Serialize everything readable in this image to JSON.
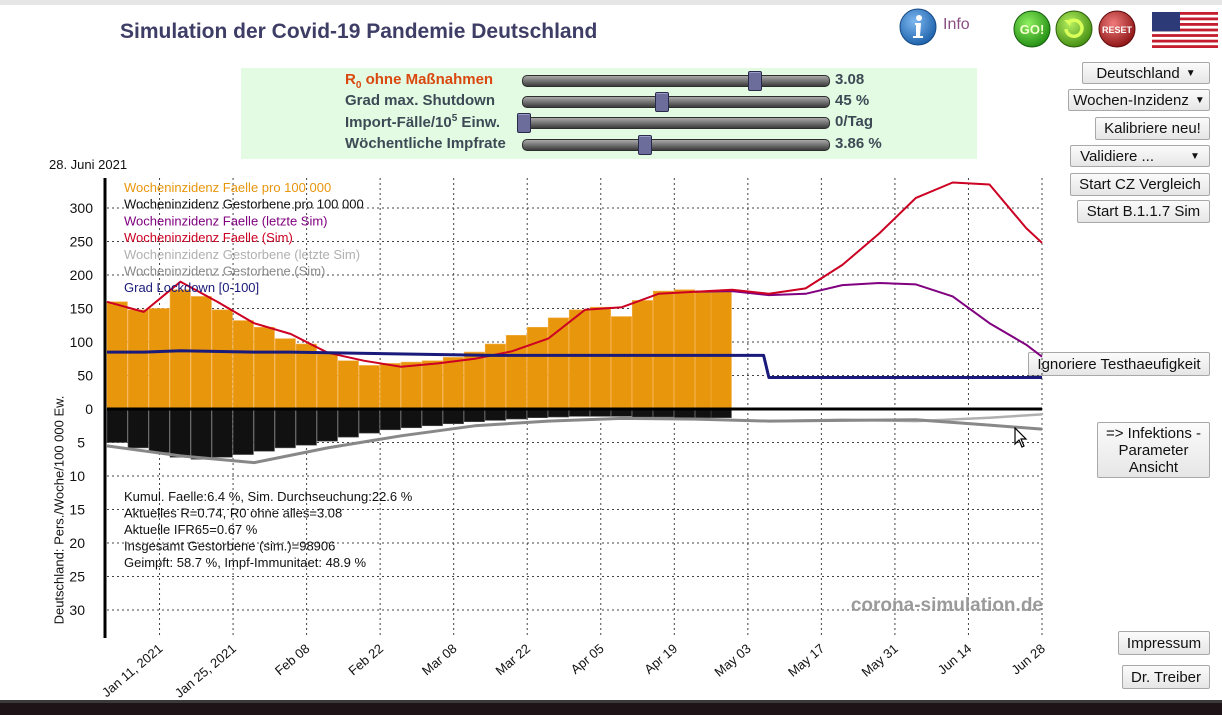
{
  "app": {
    "title": "Simulation der Covid-19 Pandemie Deutschland",
    "info_label": "Info",
    "go_label": "GO!",
    "reset_label": "RESET",
    "date": "28. Juni 2021"
  },
  "params": [
    {
      "label": "ohne Maßnahmen",
      "prefix": "R",
      "sub": "0",
      "value": "3.08",
      "level": 0.755,
      "color": "#d9480f"
    },
    {
      "label": "Grad max. Shutdown",
      "value": "45 %",
      "level": 0.45
    },
    {
      "label": "Import-Fälle/10",
      "sup": "5",
      "suffix": " Einw.",
      "value": "0/Tag",
      "level": 0.0
    },
    {
      "label": "Wöchentliche Impfrate",
      "value": "3.86 %",
      "level": 0.395
    }
  ],
  "controls": {
    "region_select": "Deutschland",
    "metric_select": "Wochen-Inzidenz",
    "calibrate": "Kalibriere neu!",
    "validate_select": "Validiere ...",
    "cz_compare": "Start CZ Vergleich",
    "b117": "Start B.1.1.7 Sim",
    "ignore_test": "Ignoriere Testhaeufigkeit",
    "params_view_1": "=> Infektions -",
    "params_view_2": "Parameter",
    "params_view_3": "Ansicht",
    "impressum": "Impressum",
    "author": "Dr. Treiber"
  },
  "chart_data": {
    "type": "line",
    "ylabel": "Deutschland: Pers./Woche/100 000 Ew.",
    "x_ticks": [
      "Jan 11, 2021",
      "Jan 25, 2021",
      "Feb 08",
      "Feb 22",
      "Mar 08",
      "Mar 22",
      "Apr 05",
      "Apr 19",
      "May 03",
      "May 17",
      "May 31",
      "Jun 14",
      "Jun 28"
    ],
    "x_range": [
      "2021-01-01",
      "2021-06-28"
    ],
    "y_ticks_upper": [
      0,
      50,
      100,
      150,
      200,
      250,
      300
    ],
    "y_ticks_lower": [
      5,
      10,
      15,
      20,
      25,
      30
    ],
    "upper_range": [
      0,
      300
    ],
    "lower_range": [
      0,
      30
    ],
    "grid": true,
    "legend_position": "top-left",
    "legend": [
      {
        "name": "Wocheninzidenz Faelle pro 100 000",
        "color": "#e8960c"
      },
      {
        "name": "Wocheninzidenz Gestorbene pro 100 000",
        "color": "#111111"
      },
      {
        "name": "Wocheninzidenz Faelle (letzte Sim)",
        "color": "#800080"
      },
      {
        "name": "Wocheninzidenz Faelle (Sim)",
        "color": "#cc0022"
      },
      {
        "name": "Wocheninzidenz Gestorbene (letzte Sim)",
        "color": "#b0b0b0"
      },
      {
        "name": "Wocheninzidenz Gestorbene (Sim)",
        "color": "#888888"
      },
      {
        "name": "Grad Lockdown [0-100]",
        "color": "#1a1a7a"
      }
    ],
    "series": [
      {
        "name": "Wocheninzidenz Faelle pro 100 000",
        "kind": "bars",
        "x": [
          "2021-01-01",
          "2021-01-05",
          "2021-01-09",
          "2021-01-13",
          "2021-01-17",
          "2021-01-21",
          "2021-01-25",
          "2021-01-29",
          "2021-02-02",
          "2021-02-06",
          "2021-02-10",
          "2021-02-14",
          "2021-02-18",
          "2021-02-22",
          "2021-02-26",
          "2021-03-02",
          "2021-03-06",
          "2021-03-10",
          "2021-03-14",
          "2021-03-18",
          "2021-03-22",
          "2021-03-26",
          "2021-03-30",
          "2021-04-03",
          "2021-04-07",
          "2021-04-11",
          "2021-04-15",
          "2021-04-19",
          "2021-04-23",
          "2021-04-26"
        ],
        "y": [
          160,
          148,
          150,
          178,
          168,
          148,
          132,
          122,
          105,
          97,
          82,
          72,
          65,
          68,
          70,
          72,
          77,
          85,
          97,
          110,
          122,
          136,
          148,
          152,
          138,
          162,
          176,
          178,
          176,
          175
        ]
      },
      {
        "name": "Wocheninzidenz Gestorbene pro 100 000",
        "kind": "bars_down",
        "x": [
          "2021-01-01",
          "2021-01-05",
          "2021-01-09",
          "2021-01-13",
          "2021-01-17",
          "2021-01-21",
          "2021-01-25",
          "2021-01-29",
          "2021-02-02",
          "2021-02-06",
          "2021-02-10",
          "2021-02-14",
          "2021-02-18",
          "2021-02-22",
          "2021-02-26",
          "2021-03-02",
          "2021-03-06",
          "2021-03-10",
          "2021-03-14",
          "2021-03-18",
          "2021-03-22",
          "2021-03-26",
          "2021-03-30",
          "2021-04-03",
          "2021-04-07",
          "2021-04-11",
          "2021-04-15",
          "2021-04-19",
          "2021-04-23",
          "2021-04-26"
        ],
        "y": [
          5.0,
          5.8,
          6.5,
          7.2,
          7.5,
          7.2,
          6.8,
          6.3,
          5.8,
          5.4,
          4.8,
          4.2,
          3.6,
          3.1,
          2.8,
          2.5,
          2.2,
          1.9,
          1.7,
          1.5,
          1.3,
          1.2,
          1.1,
          1.1,
          1.1,
          1.2,
          1.2,
          1.3,
          1.3,
          1.3
        ]
      },
      {
        "name": "Wocheninzidenz Faelle (Sim)",
        "x": [
          "2021-01-01",
          "2021-01-08",
          "2021-01-15",
          "2021-01-22",
          "2021-01-29",
          "2021-02-05",
          "2021-02-12",
          "2021-02-19",
          "2021-02-26",
          "2021-03-05",
          "2021-03-12",
          "2021-03-19",
          "2021-03-26",
          "2021-04-02",
          "2021-04-09",
          "2021-04-16",
          "2021-04-23",
          "2021-04-30",
          "2021-05-07",
          "2021-05-14",
          "2021-05-21",
          "2021-05-28",
          "2021-06-04",
          "2021-06-11",
          "2021-06-18",
          "2021-06-25",
          "2021-06-28"
        ],
        "y": [
          160,
          145,
          190,
          160,
          128,
          112,
          84,
          72,
          63,
          68,
          75,
          86,
          105,
          148,
          152,
          172,
          175,
          178,
          172,
          180,
          215,
          262,
          315,
          338,
          335,
          270,
          248
        ]
      },
      {
        "name": "Wocheninzidenz Faelle (letzte Sim)",
        "x": [
          "2021-04-23",
          "2021-04-30",
          "2021-05-07",
          "2021-05-14",
          "2021-05-21",
          "2021-05-28",
          "2021-06-04",
          "2021-06-11",
          "2021-06-18",
          "2021-06-25",
          "2021-06-28"
        ],
        "y": [
          175,
          176,
          170,
          172,
          185,
          188,
          186,
          168,
          128,
          96,
          78
        ]
      },
      {
        "name": "Grad Lockdown [0-100]",
        "x": [
          "2021-01-01",
          "2021-01-08",
          "2021-01-15",
          "2021-01-29",
          "2021-02-05",
          "2021-03-15",
          "2021-05-06",
          "2021-05-07",
          "2021-06-28"
        ],
        "y": [
          85,
          85,
          87,
          85,
          85,
          80,
          80,
          47,
          47
        ]
      },
      {
        "name": "Wocheninzidenz Gestorbene (Sim)",
        "x": [
          "2021-01-01",
          "2021-01-15",
          "2021-01-29",
          "2021-02-12",
          "2021-02-26",
          "2021-03-12",
          "2021-03-26",
          "2021-04-09",
          "2021-04-23",
          "2021-05-07",
          "2021-05-21",
          "2021-06-04",
          "2021-06-18",
          "2021-06-28"
        ],
        "y": [
          5.5,
          7.0,
          8.0,
          5.8,
          4.0,
          2.5,
          1.8,
          1.4,
          1.5,
          1.8,
          1.7,
          1.6,
          2.4,
          3.0
        ]
      },
      {
        "name": "Wocheninzidenz Gestorbene (letzte Sim)",
        "x": [
          "2021-05-07",
          "2021-05-21",
          "2021-06-04",
          "2021-06-18",
          "2021-06-28"
        ],
        "y": [
          1.8,
          1.6,
          1.8,
          1.3,
          0.8
        ]
      }
    ],
    "stats": [
      "Kumul. Faelle:6.4 %, Sim. Durchseuchung:22.6 %",
      "Aktuelles R=0.74,  R0 ohne alles=3.08",
      "Aktuelle IFR65=0.67 %",
      "Insgesamt Gestorbene (sim.)=98906",
      "Geimpft: 58.7 %, Impf-Immunitaet: 48.9 %"
    ],
    "watermark": "corona-simulation.de"
  }
}
